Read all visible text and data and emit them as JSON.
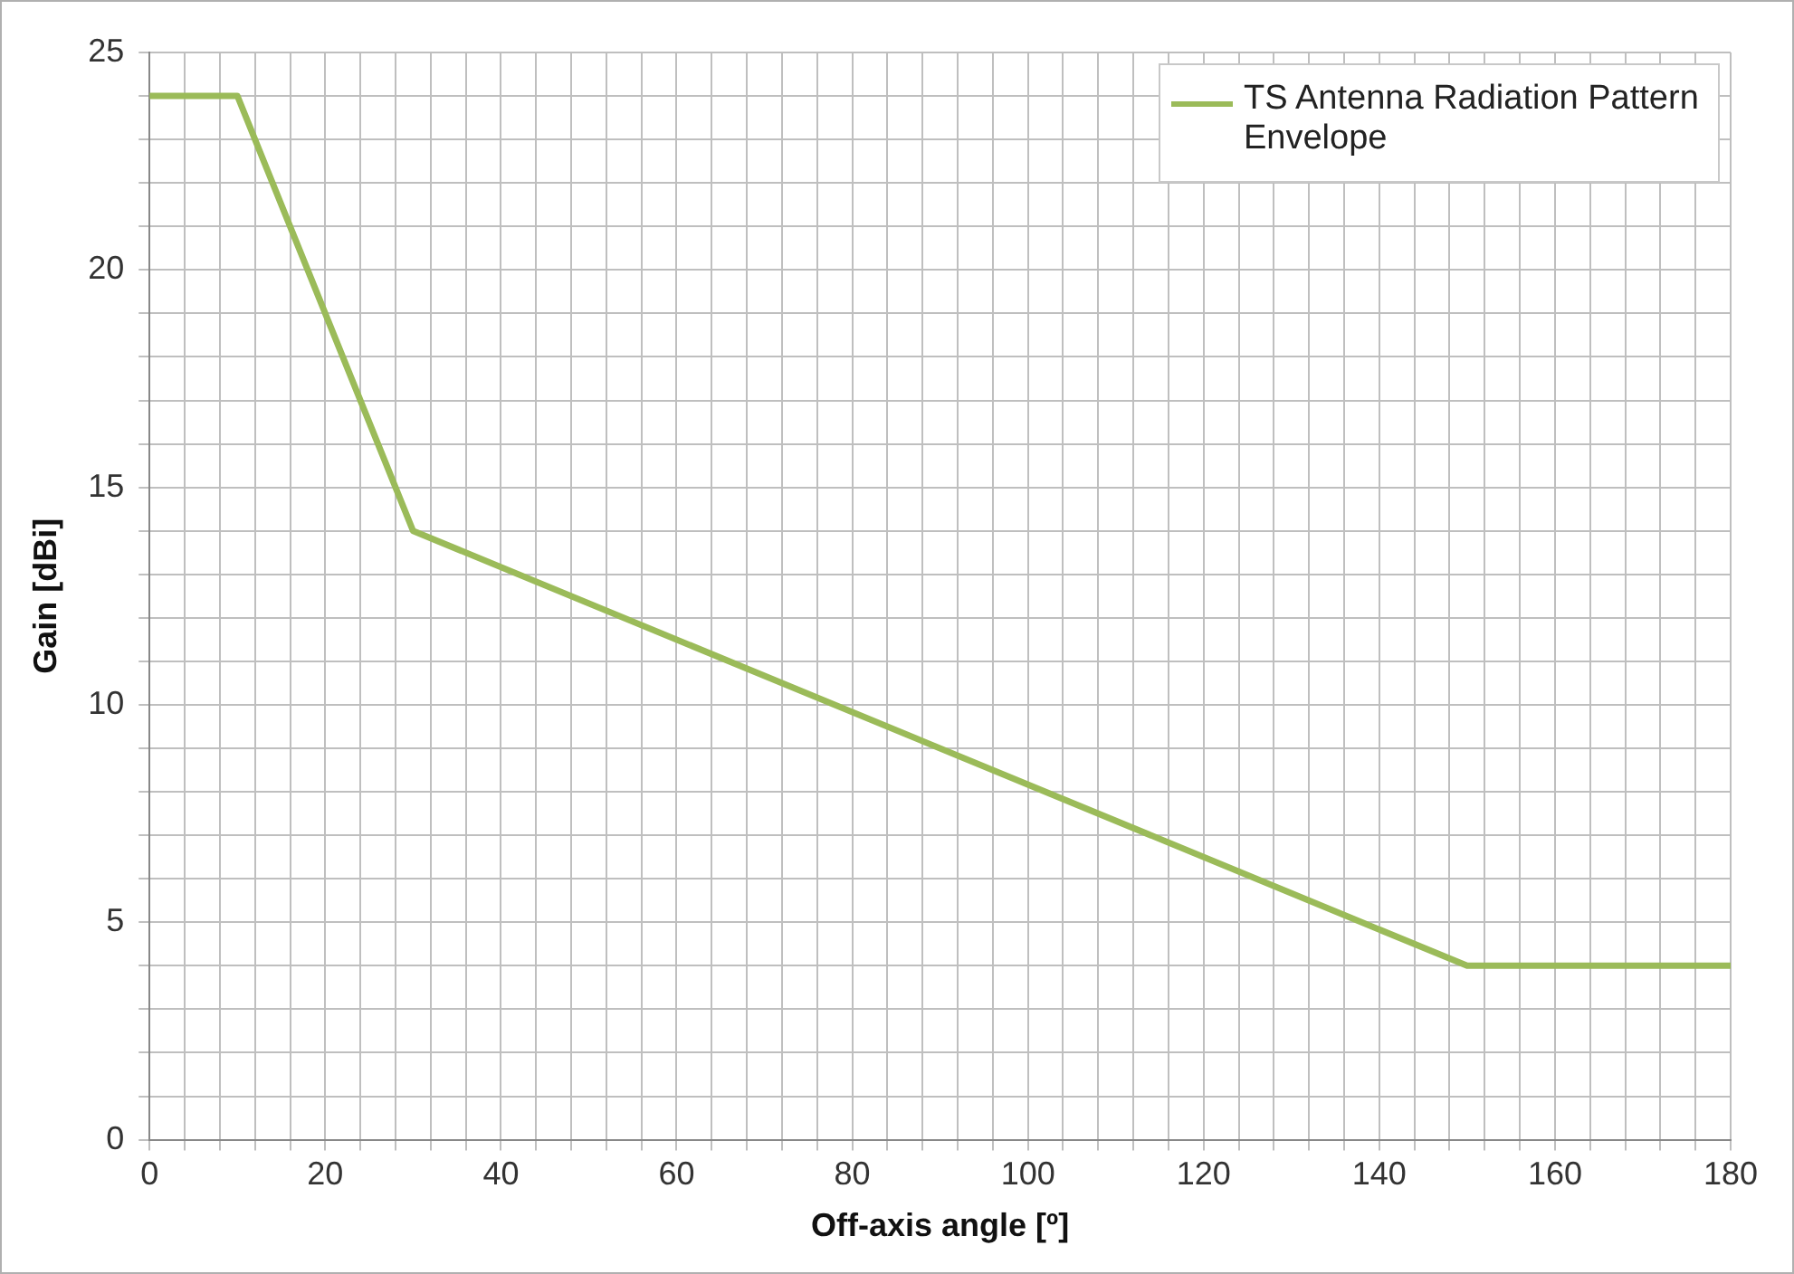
{
  "chart_data": {
    "type": "line",
    "xlabel": "Off-axis angle [º]",
    "ylabel": "Gain [dBi]",
    "x": [
      0,
      10,
      30,
      150,
      180
    ],
    "series": [
      {
        "name": "TS Antenna Radiation Pattern Envelope",
        "color": "#9bbb59",
        "values": [
          24,
          24,
          14,
          4,
          4
        ]
      }
    ],
    "xlim": [
      0,
      180
    ],
    "xticks": [
      0,
      {
        "value": 4,
        "label": null
      },
      {
        "value": 8,
        "label": null
      },
      {
        "value": 12,
        "label": null
      },
      {
        "value": 16,
        "label": null
      },
      20,
      {
        "value": 24,
        "label": null
      },
      {
        "value": 28,
        "label": null
      },
      {
        "value": 32,
        "label": null
      },
      {
        "value": 36,
        "label": null
      },
      40,
      {
        "value": 44,
        "label": null
      },
      {
        "value": 48,
        "label": null
      },
      {
        "value": 52,
        "label": null
      },
      {
        "value": 56,
        "label": null
      },
      60,
      {
        "value": 64,
        "label": null
      },
      {
        "value": 68,
        "label": null
      },
      {
        "value": 72,
        "label": null
      },
      {
        "value": 76,
        "label": null
      },
      80,
      {
        "value": 84,
        "label": null
      },
      {
        "value": 88,
        "label": null
      },
      {
        "value": 92,
        "label": null
      },
      {
        "value": 96,
        "label": null
      },
      100,
      {
        "value": 104,
        "label": null
      },
      {
        "value": 108,
        "label": null
      },
      {
        "value": 112,
        "label": null
      },
      {
        "value": 116,
        "label": null
      },
      120,
      {
        "value": 124,
        "label": null
      },
      {
        "value": 128,
        "label": null
      },
      {
        "value": 132,
        "label": null
      },
      {
        "value": 136,
        "label": null
      },
      140,
      {
        "value": 144,
        "label": null
      },
      {
        "value": 148,
        "label": null
      },
      {
        "value": 152,
        "label": null
      },
      {
        "value": 156,
        "label": null
      },
      160,
      {
        "value": 164,
        "label": null
      },
      {
        "value": 168,
        "label": null
      },
      {
        "value": 172,
        "label": null
      },
      {
        "value": 176,
        "label": null
      },
      180
    ],
    "ylim": [
      0,
      25
    ],
    "yticks": [
      0,
      {
        "value": 1,
        "label": null
      },
      {
        "value": 2,
        "label": null
      },
      {
        "value": 3,
        "label": null
      },
      {
        "value": 4,
        "label": null
      },
      5,
      {
        "value": 6,
        "label": null
      },
      {
        "value": 7,
        "label": null
      },
      {
        "value": 8,
        "label": null
      },
      {
        "value": 9,
        "label": null
      },
      10,
      {
        "value": 11,
        "label": null
      },
      {
        "value": 12,
        "label": null
      },
      {
        "value": 13,
        "label": null
      },
      {
        "value": 14,
        "label": null
      },
      15,
      {
        "value": 16,
        "label": null
      },
      {
        "value": 17,
        "label": null
      },
      {
        "value": 18,
        "label": null
      },
      {
        "value": 19,
        "label": null
      },
      20,
      {
        "value": 21,
        "label": null
      },
      {
        "value": 22,
        "label": null
      },
      {
        "value": 23,
        "label": null
      },
      {
        "value": 24,
        "label": null
      },
      25
    ],
    "grid": true,
    "legend": "top right",
    "marker": "none",
    "line_style": "solid"
  }
}
